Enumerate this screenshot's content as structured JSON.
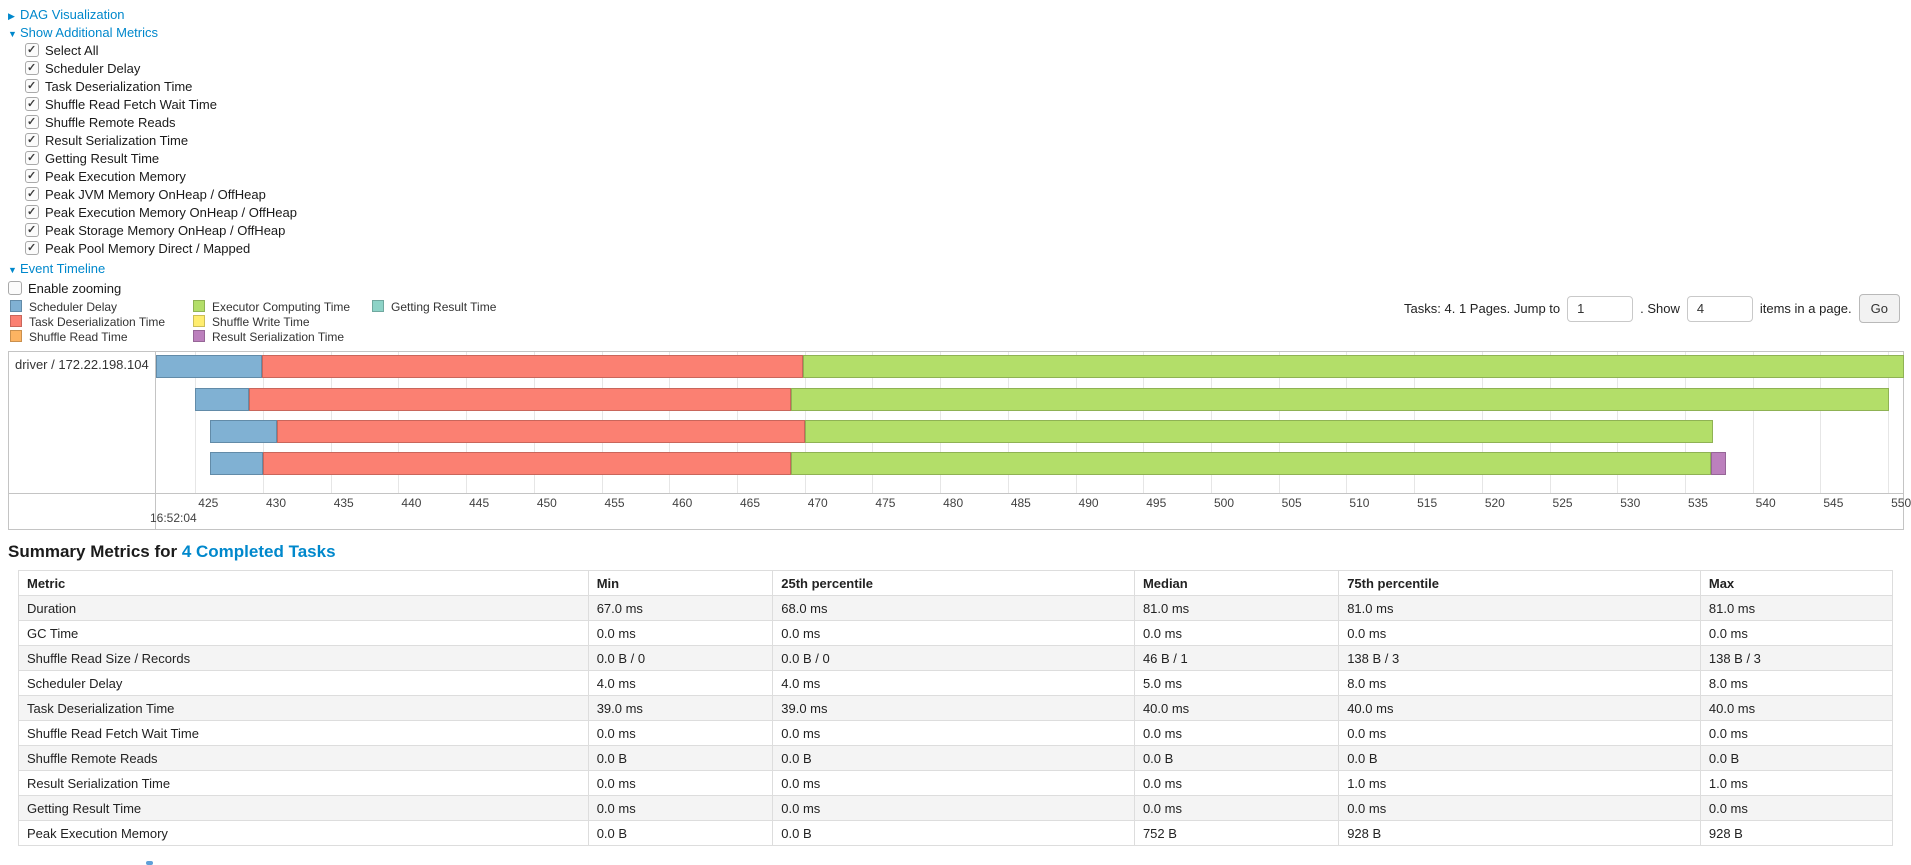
{
  "colors": {
    "link": "#0088cc",
    "panel_border": "#c4c4c4",
    "gridline": "#e6e6e6",
    "segments": {
      "scheduler_delay": {
        "fill": "#80B1D3",
        "border": "#628BA8"
      },
      "task_deserialization": {
        "fill": "#FB8072",
        "border": "#C9665B"
      },
      "shuffle_read": {
        "fill": "#FDB462",
        "border": "#CA904E"
      },
      "executor_computing": {
        "fill": "#B3DE69",
        "border": "#8FB254"
      },
      "shuffle_write": {
        "fill": "#FFED6F",
        "border": "#CCBE58"
      },
      "result_serialization": {
        "fill": "#BC80BD",
        "border": "#966697"
      },
      "getting_result": {
        "fill": "#8DD3C7",
        "border": "#70A89F"
      }
    }
  },
  "toggles": {
    "dag": {
      "label": "DAG Visualization",
      "state": "collapsed"
    },
    "metrics": {
      "label": "Show Additional Metrics",
      "state": "expanded"
    },
    "timeline": {
      "label": "Event Timeline",
      "state": "expanded"
    }
  },
  "metrics_panel": {
    "checkboxes": [
      {
        "label": "Select All",
        "checked": true
      },
      {
        "label": "Scheduler Delay",
        "checked": true
      },
      {
        "label": "Task Deserialization Time",
        "checked": true
      },
      {
        "label": "Shuffle Read Fetch Wait Time",
        "checked": true
      },
      {
        "label": "Shuffle Remote Reads",
        "checked": true
      },
      {
        "label": "Result Serialization Time",
        "checked": true
      },
      {
        "label": "Getting Result Time",
        "checked": true
      },
      {
        "label": "Peak Execution Memory",
        "checked": true
      },
      {
        "label": "Peak JVM Memory OnHeap / OffHeap",
        "checked": true
      },
      {
        "label": "Peak Execution Memory OnHeap / OffHeap",
        "checked": true
      },
      {
        "label": "Peak Storage Memory OnHeap / OffHeap",
        "checked": true
      },
      {
        "label": "Peak Pool Memory Direct / Mapped",
        "checked": true
      }
    ]
  },
  "enable_zooming": {
    "label": "Enable zooming",
    "checked": false
  },
  "pagination": {
    "tasks_text": "Tasks: 4. 1 Pages. Jump to",
    "jump_value": "1",
    "show_text": ". Show",
    "show_value": "4",
    "items_text": "items in a page.",
    "go_label": "Go"
  },
  "timeline": {
    "legend_columns": [
      [
        {
          "key": "scheduler_delay",
          "label": "Scheduler Delay"
        },
        {
          "key": "task_deserialization",
          "label": "Task Deserialization Time"
        },
        {
          "key": "shuffle_read",
          "label": "Shuffle Read Time"
        }
      ],
      [
        {
          "key": "executor_computing",
          "label": "Executor Computing Time"
        },
        {
          "key": "shuffle_write",
          "label": "Shuffle Write Time"
        },
        {
          "key": "result_serialization",
          "label": "Result Serialization Time"
        }
      ],
      [
        {
          "key": "getting_result",
          "label": "Getting Result Time"
        }
      ]
    ],
    "executor_label": "driver / 172.22.198.104",
    "axis": {
      "domain_start": 422.1,
      "domain_end": 551.1,
      "ticks": [
        425,
        430,
        435,
        440,
        445,
        450,
        455,
        460,
        465,
        470,
        475,
        480,
        485,
        490,
        495,
        500,
        505,
        510,
        515,
        520,
        525,
        530,
        535,
        540,
        545,
        550
      ],
      "time_label": "16:52:04"
    },
    "tasks": [
      {
        "segments": [
          {
            "key": "scheduler_delay",
            "start": 422.1,
            "end": 429.9
          },
          {
            "key": "task_deserialization",
            "start": 429.9,
            "end": 469.9
          },
          {
            "key": "executor_computing",
            "start": 469.9,
            "end": 551.2
          }
        ]
      },
      {
        "segments": [
          {
            "key": "scheduler_delay",
            "start": 425.0,
            "end": 429.0
          },
          {
            "key": "task_deserialization",
            "start": 429.0,
            "end": 469.0
          },
          {
            "key": "executor_computing",
            "start": 469.0,
            "end": 550.1
          }
        ]
      },
      {
        "segments": [
          {
            "key": "scheduler_delay",
            "start": 426.1,
            "end": 431.0
          },
          {
            "key": "task_deserialization",
            "start": 431.0,
            "end": 470.0
          },
          {
            "key": "executor_computing",
            "start": 470.0,
            "end": 537.1
          }
        ]
      },
      {
        "segments": [
          {
            "key": "scheduler_delay",
            "start": 426.1,
            "end": 430.0
          },
          {
            "key": "task_deserialization",
            "start": 430.0,
            "end": 469.0
          },
          {
            "key": "executor_computing",
            "start": 469.0,
            "end": 536.9
          },
          {
            "key": "result_serialization",
            "start": 536.9,
            "end": 538.0
          }
        ]
      }
    ]
  },
  "summary": {
    "heading": "Summary Metrics for ",
    "heading_link": "4 Completed Tasks"
  },
  "summary_table": {
    "columns": [
      "Metric",
      "Min",
      "25th percentile",
      "Median",
      "75th percentile",
      "Max"
    ],
    "rows": [
      {
        "metric": "Duration",
        "values": [
          "67.0 ms",
          "68.0 ms",
          "81.0 ms",
          "81.0 ms",
          "81.0 ms"
        ]
      },
      {
        "metric": "GC Time",
        "values": [
          "0.0 ms",
          "0.0 ms",
          "0.0 ms",
          "0.0 ms",
          "0.0 ms"
        ]
      },
      {
        "metric": "Shuffle Read Size / Records",
        "values": [
          "0.0 B / 0",
          "0.0 B / 0",
          "46 B / 1",
          "138 B / 3",
          "138 B / 3"
        ]
      },
      {
        "metric": "Scheduler Delay",
        "values": [
          "4.0 ms",
          "4.0 ms",
          "5.0 ms",
          "8.0 ms",
          "8.0 ms"
        ]
      },
      {
        "metric": "Task Deserialization Time",
        "values": [
          "39.0 ms",
          "39.0 ms",
          "40.0 ms",
          "40.0 ms",
          "40.0 ms"
        ]
      },
      {
        "metric": "Shuffle Read Fetch Wait Time",
        "values": [
          "0.0 ms",
          "0.0 ms",
          "0.0 ms",
          "0.0 ms",
          "0.0 ms"
        ]
      },
      {
        "metric": "Shuffle Remote Reads",
        "values": [
          "0.0 B",
          "0.0 B",
          "0.0 B",
          "0.0 B",
          "0.0 B"
        ]
      },
      {
        "metric": "Result Serialization Time",
        "values": [
          "0.0 ms",
          "0.0 ms",
          "0.0 ms",
          "1.0 ms",
          "1.0 ms"
        ]
      },
      {
        "metric": "Getting Result Time",
        "values": [
          "0.0 ms",
          "0.0 ms",
          "0.0 ms",
          "0.0 ms",
          "0.0 ms"
        ]
      },
      {
        "metric": "Peak Execution Memory",
        "values": [
          "0.0 B",
          "0.0 B",
          "752 B",
          "928 B",
          "928 B"
        ]
      }
    ]
  }
}
